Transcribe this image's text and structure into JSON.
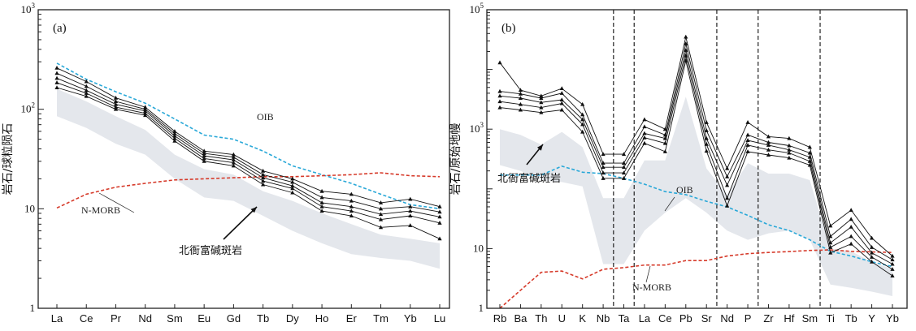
{
  "chart_data": [
    {
      "panel_label": "(a)",
      "type": "line",
      "ylabel": "岩石/球粒陨石",
      "yscale": "log",
      "ylim": [
        1,
        1000
      ],
      "ytick_labels": [
        {
          "base": "1",
          "exp": ""
        },
        {
          "base": "10",
          "exp": ""
        },
        {
          "base": "10",
          "exp": "2"
        },
        {
          "base": "10",
          "exp": "3"
        }
      ],
      "categories": [
        "La",
        "Ce",
        "Pr",
        "Nd",
        "Sm",
        "Eu",
        "Gd",
        "Tb",
        "Dy",
        "Ho",
        "Er",
        "Tm",
        "Yb",
        "Lu"
      ],
      "series": [
        {
          "values": [
            260,
            190,
            130,
            105,
            60,
            38,
            35,
            24,
            20,
            15,
            14,
            11.5,
            12.5,
            10.5
          ]
        },
        {
          "values": [
            230,
            170,
            120,
            100,
            57,
            36,
            33,
            22,
            18.5,
            13,
            12,
            10,
            10.5,
            9.3
          ]
        },
        {
          "values": [
            205,
            155,
            112,
            96,
            54,
            34,
            31,
            20.5,
            17,
            11.5,
            10.5,
            8.8,
            9.5,
            8.3
          ]
        },
        {
          "values": [
            185,
            145,
            105,
            91,
            51,
            32,
            29,
            19,
            16,
            10.5,
            9.5,
            7.8,
            8.5,
            7.2
          ]
        },
        {
          "values": [
            165,
            135,
            100,
            87,
            48,
            30,
            27,
            17.5,
            14.5,
            9.5,
            8.5,
            6.5,
            6.8,
            5.0
          ]
        }
      ],
      "reference_lines": [
        {
          "name": "OIB",
          "color": "#29a8d8",
          "values": [
            290,
            200,
            150,
            115,
            80,
            55,
            50,
            38,
            27,
            22,
            18,
            14,
            11,
            10
          ]
        },
        {
          "name": "N-MORB",
          "color": "#d63a2a",
          "values": [
            10.2,
            14,
            16.5,
            18,
            19.5,
            20,
            20.5,
            21,
            21,
            21.5,
            22,
            23,
            21.5,
            21
          ]
        }
      ],
      "field": {
        "name": "北衙富碱斑岩",
        "color": "#e4e7ec",
        "upper": [
          160,
          120,
          85,
          62,
          35,
          25,
          22,
          15,
          12,
          9,
          7,
          5.5,
          5,
          4.5
        ],
        "lower": [
          85,
          65,
          45,
          35,
          20,
          13,
          12,
          8.5,
          6,
          4.5,
          3.5,
          3.2,
          3.0,
          2.5
        ]
      },
      "annotations": {
        "oib": "OIB",
        "nmorb": "N-MORB",
        "field": "北衙富碱斑岩"
      }
    },
    {
      "panel_label": "(b)",
      "type": "line",
      "ylabel": "岩石/原始地幔",
      "yscale": "log",
      "ylim": [
        1,
        100000
      ],
      "ytick_labels": [
        {
          "base": "1",
          "exp": ""
        },
        {
          "base": "10",
          "exp": ""
        },
        {
          "base": "10",
          "exp": "3"
        },
        {
          "base": "10",
          "exp": "5"
        }
      ],
      "categories": [
        "Rb",
        "Ba",
        "Th",
        "U",
        "K",
        "Nb",
        "Ta",
        "La",
        "Ce",
        "Pb",
        "Sr",
        "Nd",
        "P",
        "Zr",
        "Hf",
        "Sm",
        "Ti",
        "Tb",
        "Y",
        "Yb"
      ],
      "dashed_dividers": [
        "Nb|Ta",
        "Ta|La",
        "Sr|Nd",
        "P|Zr",
        "Sm|Ti"
      ],
      "series": [
        {
          "values": [
            13000,
            4500,
            3600,
            4800,
            2600,
            380,
            380,
            1450,
            1000,
            35000,
            1300,
            220,
            1300,
            750,
            700,
            500,
            24,
            44,
            15,
            7.5
          ]
        },
        {
          "values": [
            4300,
            3900,
            3300,
            4000,
            1750,
            270,
            270,
            1100,
            800,
            27000,
            950,
            160,
            800,
            600,
            530,
            400,
            16,
            31,
            10.5,
            6.5
          ]
        },
        {
          "values": [
            3600,
            3300,
            2800,
            3100,
            1450,
            230,
            230,
            850,
            700,
            21000,
            700,
            115,
            650,
            540,
            450,
            340,
            12.5,
            23,
            8.5,
            5.5
          ]
        },
        {
          "values": [
            2900,
            2600,
            2300,
            2700,
            1200,
            185,
            185,
            720,
            580,
            17000,
            560,
            70,
            540,
            450,
            400,
            290,
            10.5,
            16,
            7.2,
            4.5
          ]
        },
        {
          "values": [
            2300,
            2100,
            1900,
            2100,
            900,
            150,
            150,
            580,
            420,
            14000,
            430,
            52,
            420,
            370,
            330,
            250,
            8.5,
            12,
            6,
            3.5
          ]
        }
      ],
      "reference_lines": [
        {
          "name": "OIB",
          "color": "#29a8d8",
          "values": [
            170,
            170,
            170,
            240,
            190,
            180,
            150,
            120,
            90,
            80,
            62,
            50,
            36,
            25,
            20,
            14,
            9,
            7.5,
            6,
            5
          ]
        },
        {
          "name": "N-MORB",
          "color": "#d63a2a",
          "values": [
            1.0,
            2.0,
            4.0,
            4.2,
            3.1,
            4.5,
            4.8,
            5.3,
            5.3,
            6.3,
            6.3,
            7.5,
            8.2,
            8.6,
            8.9,
            9.3,
            9.5,
            9.0,
            8.8,
            8.6
          ]
        }
      ],
      "field": {
        "name": "北衙富碱斑岩",
        "color": "#e4e7ec",
        "upper": [
          1000,
          800,
          550,
          900,
          500,
          70,
          70,
          300,
          300,
          3500,
          220,
          80,
          270,
          180,
          180,
          140,
          10,
          9,
          6,
          4.5
        ],
        "lower": [
          250,
          200,
          140,
          130,
          110,
          5.5,
          5.5,
          20,
          40,
          70,
          40,
          20,
          14,
          18,
          20,
          14,
          2.5,
          2.2,
          1.9,
          1.6
        ]
      },
      "annotations": {
        "oib": "OIB",
        "nmorb": "N-MORB",
        "field": "北衙富碱斑岩"
      }
    }
  ]
}
